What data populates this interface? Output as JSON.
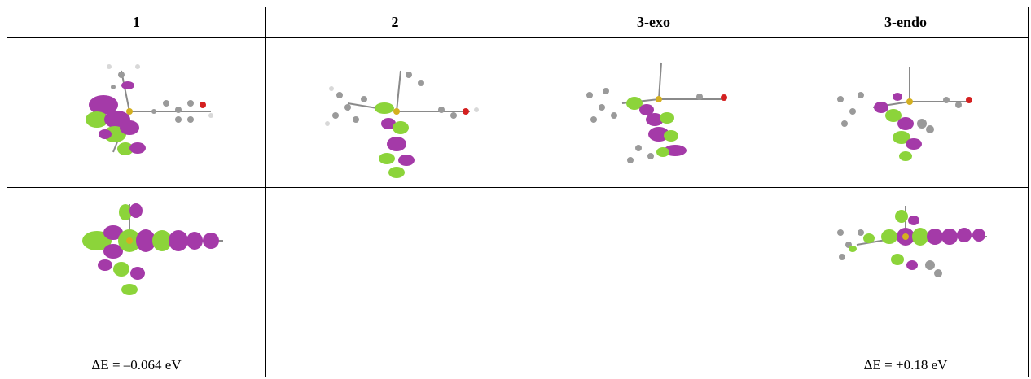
{
  "table": {
    "headers": [
      "1",
      "2",
      "3-exo",
      "3-endo"
    ],
    "row1": [
      {
        "molecule": "compound-1-frontier-orbital"
      },
      {
        "molecule": "compound-2-frontier-orbital"
      },
      {
        "molecule": "compound-3-exo-frontier-orbital"
      },
      {
        "molecule": "compound-3-endo-frontier-orbital"
      }
    ],
    "row2": [
      {
        "molecule": "compound-1-frontier-orbital",
        "delta_e": "ΔE = –0.064 eV"
      },
      {
        "molecule": "",
        "delta_e": ""
      },
      {
        "molecule": "",
        "delta_e": ""
      },
      {
        "molecule": "compound-3-endo-frontier-orbital",
        "delta_e": "ΔE = +0.18 eV"
      }
    ]
  },
  "colors": {
    "lobe_positive": "#a43aa8",
    "lobe_negative": "#8cd43a",
    "carbon": "#9a9a9a",
    "hydrogen": "#d8d8d8",
    "oxygen": "#d42020",
    "metal": "#d4b020"
  }
}
